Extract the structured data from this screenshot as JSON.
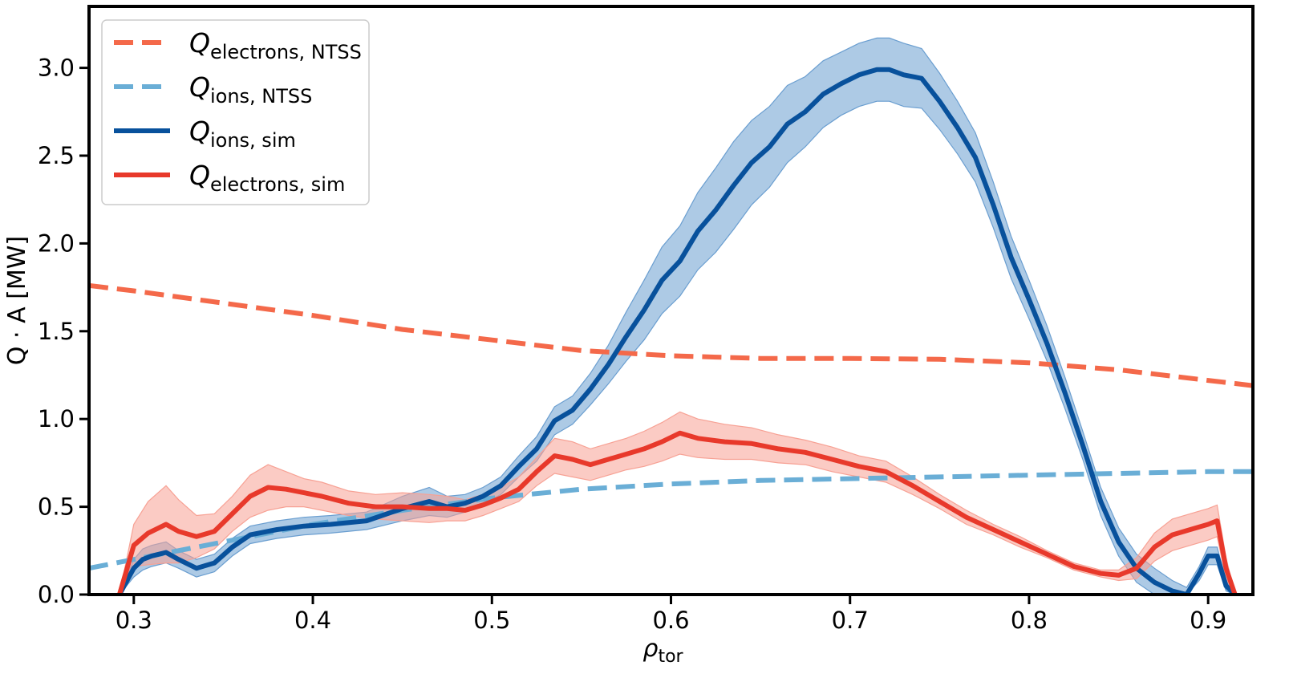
{
  "chart_data": {
    "type": "line",
    "title": "",
    "xlabel_main": "ρ",
    "xlabel_sub": "tor",
    "ylabel": "Q · A [MW]",
    "xlim": [
      0.275,
      0.925
    ],
    "ylim": [
      0.0,
      3.35
    ],
    "xticks": [
      0.3,
      0.4,
      0.5,
      0.6,
      0.7,
      0.8,
      0.9
    ],
    "xtick_labels": [
      "0.3",
      "0.4",
      "0.5",
      "0.6",
      "0.7",
      "0.8",
      "0.9"
    ],
    "yticks": [
      0.0,
      0.5,
      1.0,
      1.5,
      2.0,
      2.5,
      3.0
    ],
    "ytick_labels": [
      "0.0",
      "0.5",
      "1.0",
      "1.5",
      "2.0",
      "2.5",
      "3.0"
    ],
    "grid": false,
    "legend_position": "top-left",
    "series": [
      {
        "name": "Q_electrons,NTSS",
        "legend_main": "Q",
        "legend_sub": "electrons, NTSS",
        "color": "#f4694a",
        "style": "dashed",
        "x": [
          0.275,
          0.3,
          0.35,
          0.4,
          0.45,
          0.5,
          0.55,
          0.6,
          0.65,
          0.7,
          0.75,
          0.8,
          0.85,
          0.9,
          0.925
        ],
        "y": [
          1.76,
          1.73,
          1.66,
          1.59,
          1.51,
          1.45,
          1.39,
          1.36,
          1.345,
          1.345,
          1.34,
          1.32,
          1.28,
          1.22,
          1.19
        ]
      },
      {
        "name": "Q_ions,NTSS",
        "legend_main": "Q",
        "legend_sub": "ions, NTSS",
        "color": "#6aaed6",
        "style": "dashed",
        "x": [
          0.275,
          0.3,
          0.35,
          0.4,
          0.45,
          0.5,
          0.55,
          0.6,
          0.65,
          0.7,
          0.75,
          0.8,
          0.85,
          0.9,
          0.925
        ],
        "y": [
          0.15,
          0.2,
          0.3,
          0.4,
          0.48,
          0.55,
          0.6,
          0.63,
          0.65,
          0.66,
          0.67,
          0.68,
          0.69,
          0.7,
          0.7
        ]
      },
      {
        "name": "Q_ions,sim",
        "legend_main": "Q",
        "legend_sub": "ions, sim",
        "color": "#08519c",
        "band_color": "#6a9ed0",
        "style": "solid",
        "x": [
          0.292,
          0.3,
          0.305,
          0.31,
          0.318,
          0.325,
          0.335,
          0.345,
          0.355,
          0.365,
          0.38,
          0.395,
          0.41,
          0.43,
          0.45,
          0.465,
          0.475,
          0.485,
          0.495,
          0.505,
          0.515,
          0.525,
          0.535,
          0.545,
          0.555,
          0.565,
          0.575,
          0.585,
          0.595,
          0.605,
          0.615,
          0.625,
          0.635,
          0.645,
          0.655,
          0.665,
          0.675,
          0.685,
          0.695,
          0.705,
          0.715,
          0.722,
          0.73,
          0.74,
          0.75,
          0.76,
          0.77,
          0.78,
          0.79,
          0.8,
          0.81,
          0.82,
          0.83,
          0.84,
          0.85,
          0.86,
          0.87,
          0.88,
          0.888,
          0.895,
          0.9,
          0.905,
          0.91,
          0.915
        ],
        "y": [
          0.0,
          0.15,
          0.2,
          0.22,
          0.24,
          0.2,
          0.15,
          0.18,
          0.27,
          0.34,
          0.37,
          0.39,
          0.4,
          0.42,
          0.49,
          0.53,
          0.5,
          0.52,
          0.56,
          0.62,
          0.73,
          0.83,
          0.99,
          1.05,
          1.17,
          1.31,
          1.47,
          1.62,
          1.79,
          1.9,
          2.07,
          2.19,
          2.33,
          2.46,
          2.55,
          2.68,
          2.75,
          2.85,
          2.91,
          2.96,
          2.99,
          2.99,
          2.96,
          2.94,
          2.81,
          2.66,
          2.49,
          2.22,
          1.92,
          1.68,
          1.43,
          1.15,
          0.85,
          0.53,
          0.3,
          0.15,
          0.07,
          0.02,
          0.0,
          0.12,
          0.22,
          0.22,
          0.05,
          0.0
        ],
        "band_halfwidth": [
          0.0,
          0.05,
          0.06,
          0.06,
          0.06,
          0.05,
          0.05,
          0.05,
          0.05,
          0.05,
          0.05,
          0.05,
          0.05,
          0.05,
          0.07,
          0.08,
          0.06,
          0.05,
          0.05,
          0.05,
          0.06,
          0.07,
          0.08,
          0.08,
          0.09,
          0.11,
          0.14,
          0.17,
          0.19,
          0.2,
          0.22,
          0.24,
          0.25,
          0.24,
          0.23,
          0.22,
          0.2,
          0.19,
          0.18,
          0.18,
          0.18,
          0.18,
          0.18,
          0.17,
          0.16,
          0.15,
          0.14,
          0.13,
          0.12,
          0.11,
          0.1,
          0.09,
          0.08,
          0.08,
          0.08,
          0.08,
          0.08,
          0.06,
          0.04,
          0.04,
          0.05,
          0.05,
          0.03,
          0.0
        ]
      },
      {
        "name": "Q_electrons,sim",
        "legend_main": "Q",
        "legend_sub": "electrons, sim",
        "color": "#e8392b",
        "band_color": "#f7a194",
        "style": "solid",
        "x": [
          0.292,
          0.3,
          0.308,
          0.318,
          0.325,
          0.335,
          0.345,
          0.355,
          0.365,
          0.375,
          0.385,
          0.395,
          0.405,
          0.42,
          0.435,
          0.45,
          0.465,
          0.475,
          0.485,
          0.495,
          0.505,
          0.515,
          0.525,
          0.535,
          0.545,
          0.555,
          0.565,
          0.575,
          0.585,
          0.595,
          0.605,
          0.615,
          0.63,
          0.645,
          0.66,
          0.675,
          0.69,
          0.705,
          0.72,
          0.735,
          0.75,
          0.765,
          0.78,
          0.795,
          0.81,
          0.825,
          0.84,
          0.85,
          0.86,
          0.87,
          0.88,
          0.89,
          0.9,
          0.905,
          0.91,
          0.915
        ],
        "y": [
          0.0,
          0.28,
          0.35,
          0.4,
          0.36,
          0.33,
          0.36,
          0.46,
          0.56,
          0.61,
          0.6,
          0.58,
          0.56,
          0.52,
          0.5,
          0.5,
          0.49,
          0.49,
          0.48,
          0.51,
          0.55,
          0.6,
          0.7,
          0.79,
          0.77,
          0.74,
          0.77,
          0.8,
          0.83,
          0.87,
          0.92,
          0.89,
          0.87,
          0.86,
          0.83,
          0.81,
          0.77,
          0.73,
          0.7,
          0.62,
          0.53,
          0.44,
          0.37,
          0.3,
          0.23,
          0.16,
          0.12,
          0.11,
          0.15,
          0.27,
          0.34,
          0.37,
          0.4,
          0.42,
          0.15,
          0.0
        ],
        "band_halfwidth": [
          0.0,
          0.12,
          0.18,
          0.22,
          0.18,
          0.12,
          0.1,
          0.1,
          0.12,
          0.13,
          0.1,
          0.08,
          0.08,
          0.07,
          0.07,
          0.08,
          0.08,
          0.07,
          0.06,
          0.06,
          0.06,
          0.07,
          0.08,
          0.1,
          0.1,
          0.09,
          0.09,
          0.09,
          0.1,
          0.11,
          0.12,
          0.11,
          0.1,
          0.09,
          0.08,
          0.07,
          0.07,
          0.06,
          0.06,
          0.05,
          0.04,
          0.04,
          0.03,
          0.03,
          0.02,
          0.02,
          0.02,
          0.03,
          0.06,
          0.08,
          0.09,
          0.09,
          0.09,
          0.09,
          0.06,
          0.0
        ]
      }
    ]
  }
}
